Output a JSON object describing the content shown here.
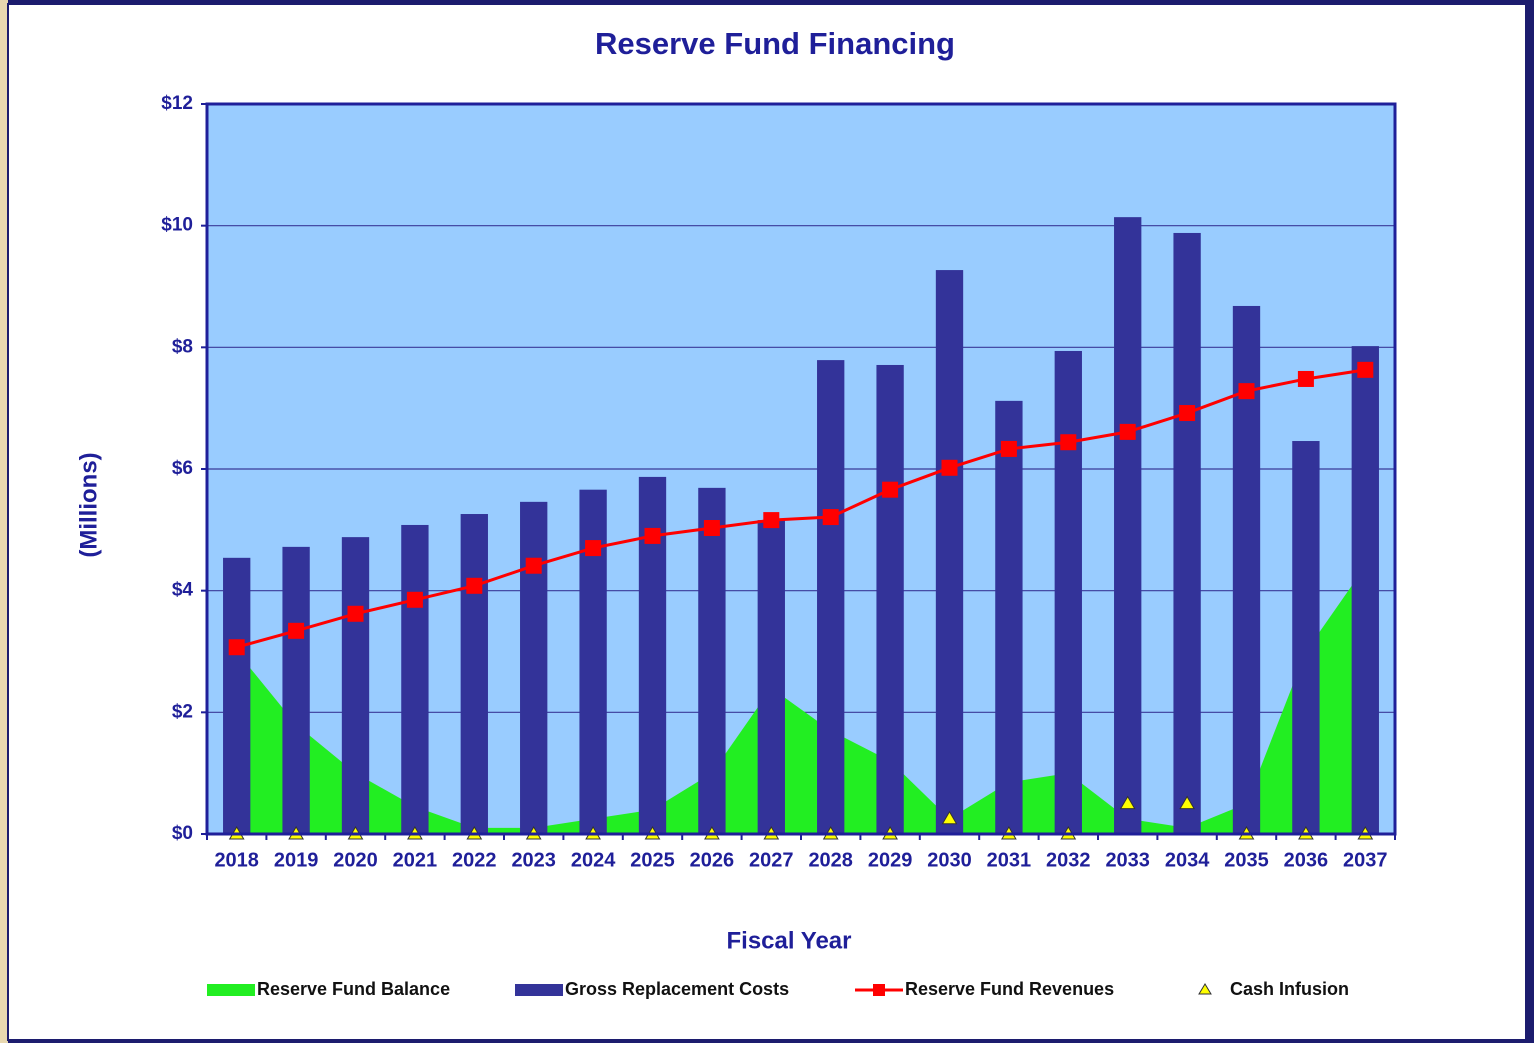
{
  "chart_data": {
    "type": "bar",
    "title": "Reserve Fund Financing",
    "y_label": "(Millions)",
    "x_label": "Fiscal Year",
    "categories": [
      "2018",
      "2019",
      "2020",
      "2021",
      "2022",
      "2023",
      "2024",
      "2025",
      "2026",
      "2027",
      "2028",
      "2029",
      "2030",
      "2031",
      "2032",
      "2033",
      "2034",
      "2035",
      "2036",
      "2037"
    ],
    "ylim": [
      0,
      12
    ],
    "yticks": [
      {
        "value": 0,
        "label": "$0"
      },
      {
        "value": 2,
        "label": "$2"
      },
      {
        "value": 4,
        "label": "$4"
      },
      {
        "value": 6,
        "label": "$6"
      },
      {
        "value": 8,
        "label": "$8"
      },
      {
        "value": 10,
        "label": "$10"
      },
      {
        "value": 12,
        "label": "$12"
      }
    ],
    "grid": true,
    "legend": "bottom",
    "series": [
      {
        "name": "Reserve Fund Balance",
        "type": "area",
        "color": "#22ee22",
        "values": [
          3.0,
          1.8,
          1.0,
          0.45,
          0.1,
          0.1,
          0.25,
          0.4,
          1.0,
          2.4,
          1.7,
          1.2,
          0.25,
          0.85,
          1.0,
          0.25,
          0.1,
          0.5,
          3.0,
          4.4
        ]
      },
      {
        "name": "Gross Replacement Costs",
        "type": "bar",
        "color": "#333399",
        "values": [
          4.54,
          4.72,
          4.88,
          5.08,
          5.26,
          5.46,
          5.66,
          5.87,
          5.69,
          5.16,
          7.79,
          7.71,
          9.27,
          7.12,
          7.94,
          10.14,
          9.88,
          8.68,
          6.46,
          8.02
        ]
      },
      {
        "name": "Reserve Fund Revenues",
        "type": "line",
        "color": "#ff0000",
        "values": [
          3.07,
          3.34,
          3.62,
          3.85,
          4.08,
          4.41,
          4.7,
          4.9,
          5.03,
          5.16,
          5.21,
          5.66,
          6.02,
          6.33,
          6.44,
          6.61,
          6.92,
          7.28,
          7.48,
          7.63
        ]
      },
      {
        "name": "Cash Infusion",
        "type": "marker",
        "color": "#ffff00",
        "values": [
          0,
          0,
          0,
          0,
          0,
          0,
          0,
          0,
          0,
          0,
          0,
          0,
          0.25,
          0,
          0,
          0.5,
          0.5,
          0,
          0,
          0
        ]
      }
    ]
  }
}
